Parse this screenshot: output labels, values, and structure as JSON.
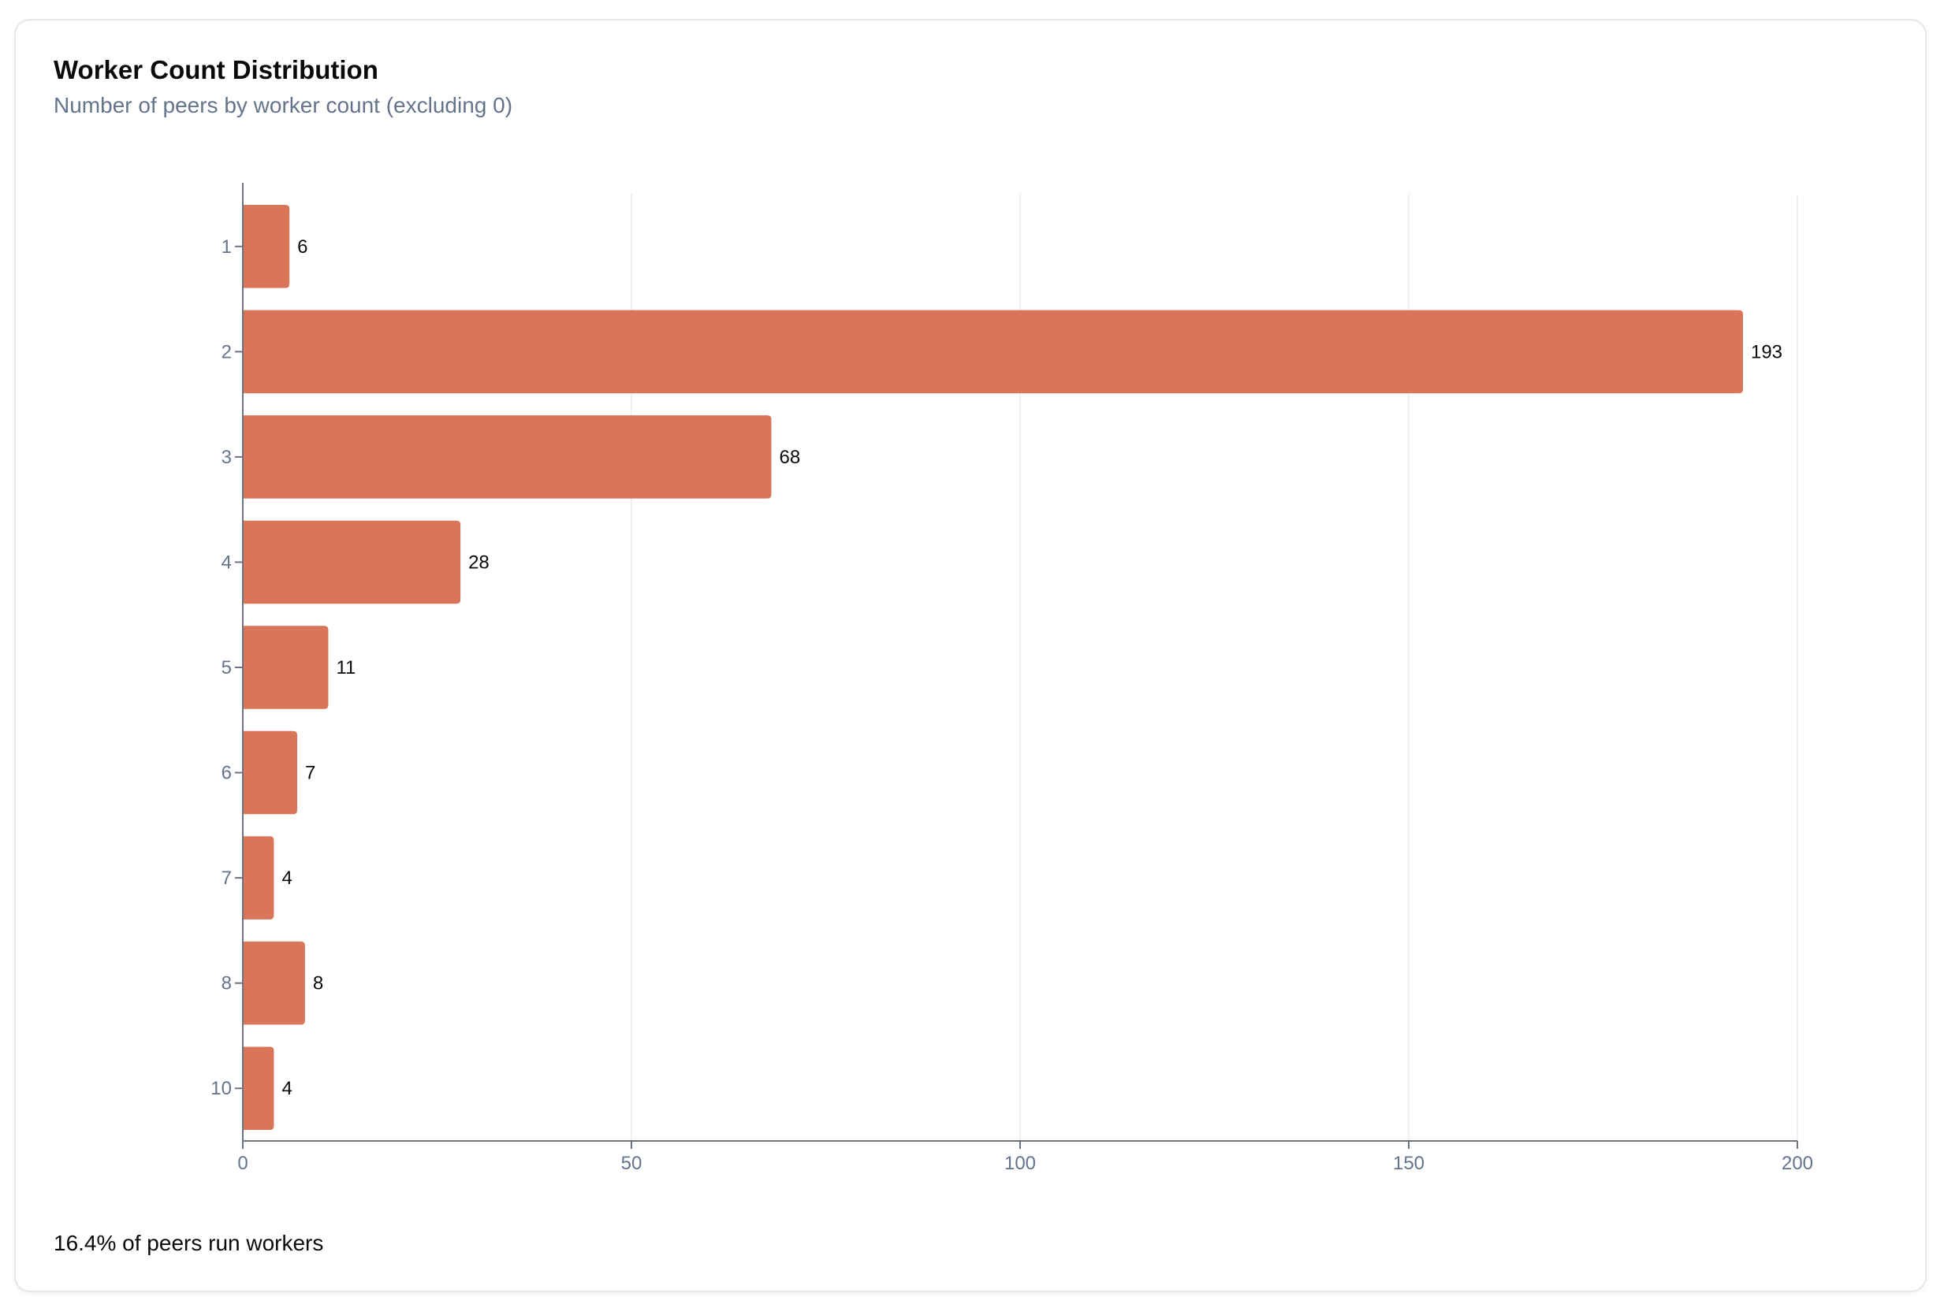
{
  "card": {
    "title": "Worker Count Distribution",
    "subtitle": "Number of peers by worker count (excluding 0)",
    "footer": "16.4% of peers run workers"
  },
  "colors": {
    "bar": "#d97559",
    "axis": "#6b7280",
    "grid": "#f0f0f0",
    "tick_text": "#64748b",
    "label_text": "#0a0a0a"
  },
  "chart_data": {
    "type": "bar",
    "orientation": "horizontal",
    "categories": [
      "1",
      "2",
      "3",
      "4",
      "5",
      "6",
      "7",
      "8",
      "10"
    ],
    "values": [
      6,
      193,
      68,
      28,
      11,
      7,
      4,
      8,
      4
    ],
    "data_labels": [
      "6",
      "193",
      "68",
      "28",
      "11",
      "7",
      "4",
      "8",
      "4"
    ],
    "x_ticks": [
      "0",
      "50",
      "100",
      "150",
      "200"
    ],
    "x_tick_values": [
      0,
      50,
      100,
      150,
      200
    ],
    "xlim": [
      0,
      200
    ],
    "grid": "vertical",
    "legend": "none"
  }
}
